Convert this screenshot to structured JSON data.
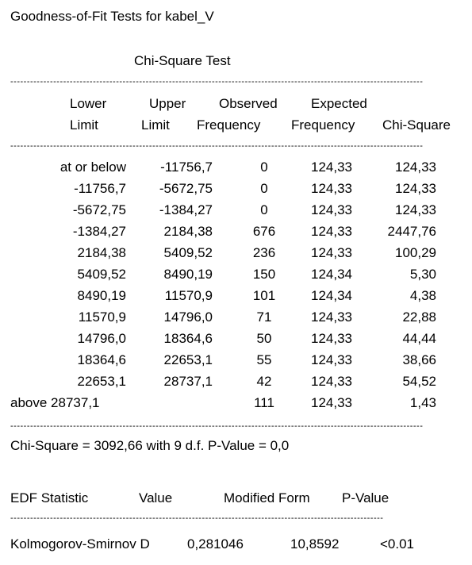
{
  "title": "Goodness-of-Fit Tests for kabel_V",
  "subtitle": "Chi-Square  Test",
  "separator": "--------------------------------------------------------------------------------------------------------------------------------------------------",
  "table": {
    "headers": [
      {
        "line1": "Lower",
        "line2": "Limit"
      },
      {
        "line1": "Upper",
        "line2": "Limit"
      },
      {
        "line1": "Observed",
        "line2": "Frequency"
      },
      {
        "line1": "Expected",
        "line2": "Frequency"
      },
      {
        "line1": "",
        "line2": "Chi-Square"
      }
    ],
    "rows": [
      [
        "at or below",
        "-11756,7",
        "0",
        "124,33",
        "124,33"
      ],
      [
        "-11756,7",
        "-5672,75",
        "0",
        "124,33",
        "124,33"
      ],
      [
        "-5672,75",
        "-1384,27",
        "0",
        "124,33",
        "124,33"
      ],
      [
        "-1384,27",
        "2184,38",
        "676",
        "124,33",
        "2447,76"
      ],
      [
        "2184,38",
        "5409,52",
        "236",
        "124,33",
        "100,29"
      ],
      [
        "5409,52",
        "8490,19",
        "150",
        "124,34",
        "5,30"
      ],
      [
        "8490,19",
        "11570,9",
        "101",
        "124,34",
        "4,38"
      ],
      [
        "11570,9",
        "14796,0",
        "71",
        "124,33",
        "22,88"
      ],
      [
        "14796,0",
        "18364,6",
        "50",
        "124,33",
        "44,44"
      ],
      [
        "18364,6",
        "22653,1",
        "55",
        "124,33",
        "38,66"
      ],
      [
        "22653,1",
        "28737,1",
        "42",
        "124,33",
        "54,52"
      ],
      [
        "above 28737,1",
        "",
        "111",
        "124,33",
        "1,43"
      ]
    ]
  },
  "summary": "Chi-Square = 3092,66 with 9 d.f.   P-Value = 0,0",
  "edf": {
    "headers": [
      "EDF Statistic",
      "Value",
      "Modified Form",
      "P-Value"
    ],
    "row": [
      "Kolmogorov-Smirnov D",
      "0,281046",
      "10,8592",
      "<0.01"
    ]
  }
}
